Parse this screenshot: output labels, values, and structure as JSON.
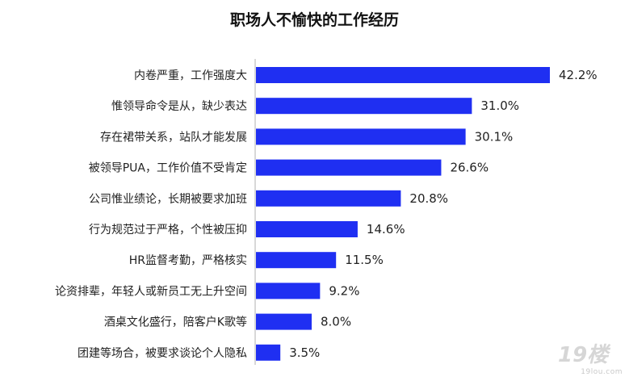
{
  "chart_data": {
    "type": "bar",
    "orientation": "horizontal",
    "title": "职场人不愉快的工作经历",
    "categories": [
      "内卷严重，工作强度大",
      "惟领导命令是从，缺少表达",
      "存在裙带关系，站队才能发展",
      "被领导PUA，工作价值不受肯定",
      "公司惟业绩论，长期被要求加班",
      "行为规范过于严格，个性被压抑",
      "HR监督考勤，严格核实",
      "论资排辈，年轻人或新员工无上升空间",
      "酒桌文化盛行，陪客户K歌等",
      "团建等场合，被要求谈论个人隐私"
    ],
    "values": [
      42.2,
      31.0,
      30.1,
      26.6,
      20.8,
      14.6,
      11.5,
      9.2,
      8.0,
      3.5
    ],
    "value_labels": [
      "42.2%",
      "31.0%",
      "30.1%",
      "26.6%",
      "20.8%",
      "14.6%",
      "11.5%",
      "9.2%",
      "8.0%",
      "3.5%"
    ],
    "xlim": [
      0,
      42.2
    ],
    "bar_color": "#1f2ff2",
    "axis_color": "#b0b0b0",
    "grid": false,
    "legend": "none"
  },
  "watermark": {
    "logo_text": "19楼",
    "site_text": "19lou.com",
    "color": "#d4d4d4"
  }
}
